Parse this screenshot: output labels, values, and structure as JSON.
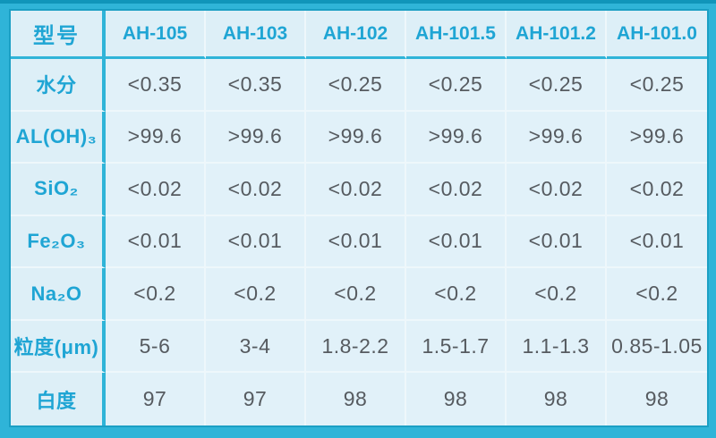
{
  "table": {
    "corner_label": "型号",
    "columns": [
      "AH-105",
      "AH-103",
      "AH-102",
      "AH-101.5",
      "AH-101.2",
      "AH-101.0"
    ],
    "rows": [
      {
        "key": "moisture",
        "label": "水分",
        "values": [
          "<0.35",
          "<0.35",
          "<0.25",
          "<0.25",
          "<0.25",
          "<0.25"
        ]
      },
      {
        "key": "al-oh-3",
        "label": "AL(OH)₃",
        "values": [
          ">99.6",
          ">99.6",
          ">99.6",
          ">99.6",
          ">99.6",
          ">99.6"
        ]
      },
      {
        "key": "sio2",
        "label": "SiO₂",
        "values": [
          "<0.02",
          "<0.02",
          "<0.02",
          "<0.02",
          "<0.02",
          "<0.02"
        ]
      },
      {
        "key": "fe2o3",
        "label": "Fe₂O₃",
        "values": [
          "<0.01",
          "<0.01",
          "<0.01",
          "<0.01",
          "<0.01",
          "<0.01"
        ]
      },
      {
        "key": "na2o",
        "label": "Na₂O",
        "values": [
          "<0.2",
          "<0.2",
          "<0.2",
          "<0.2",
          "<0.2",
          "<0.2"
        ]
      },
      {
        "key": "particle-size",
        "label": "粒度(μm)",
        "values": [
          "5-6",
          "3-4",
          "1.8-2.2",
          "1.5-1.7",
          "1.1-1.3",
          "0.85-1.05"
        ]
      },
      {
        "key": "whiteness",
        "label": "白度",
        "values": [
          "97",
          "97",
          "98",
          "98",
          "98",
          "98"
        ]
      }
    ],
    "colors": {
      "frame": "#2fb4d8",
      "frame_dark_edge": "#1095ba",
      "cell_background": "#e1f1f9",
      "label_background": "#ddeff7",
      "accent_text": "#1fa5d4",
      "data_text": "#565b60",
      "thin_divider": "#eef7fb"
    }
  }
}
